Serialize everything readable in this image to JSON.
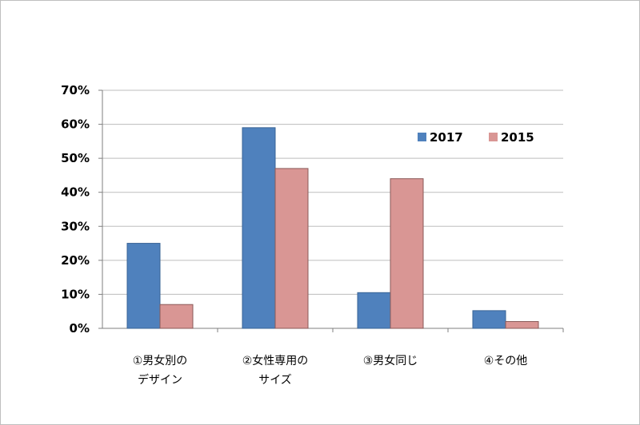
{
  "chart_data": {
    "type": "bar",
    "categories": [
      [
        "①男女別の",
        "デザイン"
      ],
      [
        "②女性専用の",
        "サイズ"
      ],
      [
        "③男女同じ"
      ],
      [
        "④その他"
      ]
    ],
    "series": [
      {
        "name": "2017",
        "color": "#4f81bd",
        "values": [
          25,
          59,
          10.5,
          5.2
        ]
      },
      {
        "name": "2015",
        "color": "#d99694",
        "values": [
          7,
          47,
          44,
          2
        ]
      }
    ],
    "yticks": [
      "0%",
      "10%",
      "20%",
      "30%",
      "40%",
      "50%",
      "60%",
      "70%"
    ],
    "ylim": [
      0,
      70
    ],
    "grid": true,
    "legend_position": "top-right",
    "title": "",
    "xlabel": "",
    "ylabel": ""
  }
}
